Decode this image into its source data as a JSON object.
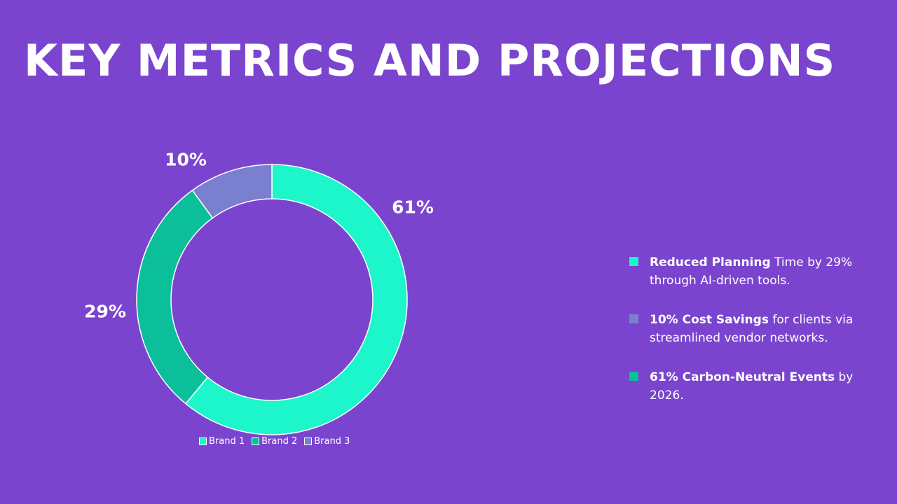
{
  "title": "KEY METRICS AND PROJECTIONS",
  "chart_data": {
    "type": "pie",
    "subtype": "donut",
    "categories": [
      "Brand 1",
      "Brand 2",
      "Brand 3"
    ],
    "values": [
      61,
      29,
      10
    ],
    "data_labels": [
      "61%",
      "29%",
      "10%"
    ],
    "colors": [
      "#1DF5CB",
      "#0BBF9A",
      "#7B7FD0"
    ],
    "legend_position": "bottom"
  },
  "bullets": [
    {
      "bold": "Reduced Planning",
      "text": " Time by 29% through AI-driven tools.",
      "color": "#1DF5CB"
    },
    {
      "bold": "10% Cost Savings",
      "text": " for clients via streamlined vendor networks.",
      "color": "#7B7FD0"
    },
    {
      "bold": "61% Carbon-Neutral Events",
      "text": " by 2026.",
      "color": "#0BBF9A"
    }
  ]
}
